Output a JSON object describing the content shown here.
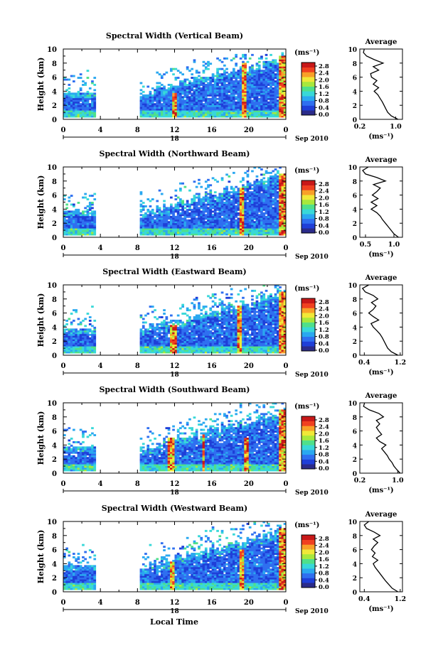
{
  "figure": {
    "day_label": "18",
    "date_label": "Sep 2010",
    "xlabel": "Local Time",
    "ylabel": "Height (km)",
    "unit_label": "(ms⁻¹)",
    "profile_title": "Average",
    "profile_xlabel": "(ms⁻¹)"
  },
  "chart_data": [
    {
      "type": "heatmap",
      "title": "Spectral Width (Vertical Beam)",
      "x_ticks": [
        "0",
        "4",
        "8",
        "12",
        "16",
        "20",
        "0"
      ],
      "x_range": [
        0,
        24
      ],
      "y_ticks": [
        "0",
        "2",
        "4",
        "6",
        "8",
        "10"
      ],
      "ylim": [
        0,
        10
      ],
      "colorbar_ticks": [
        "0.0",
        "0.4",
        "0.8",
        "1.2",
        "1.6",
        "2.0",
        "2.4",
        "2.8"
      ],
      "colorbar_range": [
        0,
        2.8
      ],
      "gaps": [
        [
          3.3,
          8.2
        ]
      ],
      "features": [
        {
          "x": 11.8,
          "width": 0.6,
          "top": 3.8
        },
        {
          "x": 19.3,
          "width": 0.6,
          "top": 8
        },
        {
          "x": 23.6,
          "width": 0.8,
          "top": 9
        }
      ],
      "profile": {
        "title": "Average",
        "x_ticks": [
          "0.2",
          "1.0"
        ],
        "xlim": [
          0.2,
          1.15
        ],
        "height": [
          0,
          0.5,
          1,
          1.5,
          2,
          2.5,
          3,
          3.5,
          4,
          4.5,
          5,
          5.5,
          6,
          6.5,
          7,
          7.5,
          8,
          8.5,
          9,
          9.5,
          10
        ],
        "values": [
          1.05,
          0.9,
          0.82,
          0.78,
          0.74,
          0.7,
          0.65,
          0.6,
          0.52,
          0.62,
          0.5,
          0.58,
          0.46,
          0.44,
          0.62,
          0.5,
          0.72,
          0.52,
          0.35,
          0.28,
          0.3
        ]
      }
    },
    {
      "type": "heatmap",
      "title": "Spectral Width (Northward Beam)",
      "x_ticks": [
        "0",
        "4",
        "8",
        "12",
        "16",
        "20",
        "0"
      ],
      "x_range": [
        0,
        24
      ],
      "y_ticks": [
        "0",
        "2",
        "4",
        "6",
        "8",
        "10"
      ],
      "ylim": [
        0,
        10
      ],
      "colorbar_ticks": [
        "0.0",
        "0.4",
        "0.8",
        "1.2",
        "1.6",
        "2.0",
        "2.4",
        "2.8"
      ],
      "colorbar_range": [
        0,
        2.8
      ],
      "gaps": [
        [
          3.3,
          8.2
        ]
      ],
      "features": [
        {
          "x": 19.2,
          "width": 0.6,
          "top": 7
        },
        {
          "x": 23.6,
          "width": 0.8,
          "top": 9
        }
      ],
      "profile": {
        "title": "Average",
        "x_ticks": [
          "0.5",
          "1.0"
        ],
        "xlim": [
          0.4,
          1.15
        ],
        "height": [
          0,
          0.5,
          1,
          1.5,
          2,
          2.5,
          3,
          3.5,
          4,
          4.5,
          5,
          5.5,
          6,
          6.5,
          7,
          7.5,
          8,
          8.5,
          9,
          9.5,
          10
        ],
        "values": [
          1.08,
          1.0,
          0.95,
          0.9,
          0.85,
          0.8,
          0.76,
          0.7,
          0.6,
          0.7,
          0.6,
          0.72,
          0.62,
          0.7,
          0.76,
          0.64,
          0.85,
          0.7,
          0.5,
          0.45,
          0.55
        ]
      }
    },
    {
      "type": "heatmap",
      "title": "Spectral Width (Eastward Beam)",
      "x_ticks": [
        "0",
        "4",
        "8",
        "12",
        "16",
        "20",
        "0"
      ],
      "x_range": [
        0,
        24
      ],
      "y_ticks": [
        "0",
        "2",
        "4",
        "6",
        "8",
        "10"
      ],
      "ylim": [
        0,
        10
      ],
      "colorbar_ticks": [
        "0.0",
        "0.4",
        "0.8",
        "1.2",
        "1.6",
        "2.0",
        "2.4",
        "2.8"
      ],
      "colorbar_range": [
        0,
        2.8
      ],
      "gaps": [
        [
          3.3,
          8.2
        ]
      ],
      "features": [
        {
          "x": 11.7,
          "width": 0.7,
          "top": 4.2
        },
        {
          "x": 18.8,
          "width": 0.6,
          "top": 7
        },
        {
          "x": 23.6,
          "width": 0.8,
          "top": 9
        }
      ],
      "profile": {
        "title": "Average",
        "x_ticks": [
          "0.4",
          "1.2"
        ],
        "xlim": [
          0.3,
          1.25
        ],
        "height": [
          0,
          0.5,
          1,
          1.5,
          2,
          2.5,
          3,
          3.5,
          4,
          4.5,
          5,
          5.5,
          6,
          6.5,
          7,
          7.5,
          8,
          8.5,
          9,
          9.5,
          10
        ],
        "values": [
          1.15,
          1.0,
          0.92,
          0.88,
          0.84,
          0.8,
          0.75,
          0.68,
          0.6,
          0.55,
          0.72,
          0.6,
          0.5,
          0.6,
          0.66,
          0.56,
          0.7,
          0.6,
          0.42,
          0.36,
          0.5
        ]
      }
    },
    {
      "type": "heatmap",
      "title": "Spectral Width (Southward Beam)",
      "x_ticks": [
        "0",
        "4",
        "8",
        "12",
        "16",
        "20",
        "0"
      ],
      "x_range": [
        0,
        24
      ],
      "y_ticks": [
        "0",
        "2",
        "4",
        "6",
        "8",
        "10"
      ],
      "ylim": [
        0,
        10
      ],
      "colorbar_ticks": [
        "0.0",
        "0.4",
        "0.8",
        "1.2",
        "1.6",
        "2.0",
        "2.4",
        "2.8"
      ],
      "colorbar_range": [
        0,
        2.8
      ],
      "gaps": [
        [
          3.3,
          8.2
        ]
      ],
      "features": [
        {
          "x": 11.6,
          "width": 0.8,
          "top": 5
        },
        {
          "x": 15.0,
          "width": 0.5,
          "top": 5.5
        },
        {
          "x": 19.6,
          "width": 0.5,
          "top": 5
        },
        {
          "x": 23.6,
          "width": 0.8,
          "top": 9
        }
      ],
      "profile": {
        "title": "Average",
        "x_ticks": [
          "0.2",
          "1.0"
        ],
        "xlim": [
          0.2,
          1.1
        ],
        "height": [
          0,
          0.5,
          1,
          1.5,
          2,
          2.5,
          3,
          3.5,
          4,
          4.5,
          5,
          5.5,
          6,
          6.5,
          7,
          7.5,
          8,
          8.5,
          9,
          9.5,
          10
        ],
        "values": [
          1.05,
          0.98,
          0.92,
          0.88,
          0.82,
          0.78,
          0.72,
          0.66,
          0.75,
          0.62,
          0.55,
          0.66,
          0.6,
          0.55,
          0.62,
          0.55,
          0.7,
          0.6,
          0.4,
          0.28,
          0.3
        ]
      }
    },
    {
      "type": "heatmap",
      "title": "Spectral Width (Westward Beam)",
      "x_ticks": [
        "0",
        "4",
        "8",
        "12",
        "16",
        "20",
        "0"
      ],
      "x_range": [
        0,
        24
      ],
      "y_ticks": [
        "0",
        "2",
        "4",
        "6",
        "8",
        "10"
      ],
      "ylim": [
        0,
        10
      ],
      "colorbar_ticks": [
        "0.0",
        "0.4",
        "0.8",
        "1.2",
        "1.6",
        "2.0",
        "2.4",
        "2.8"
      ],
      "colorbar_range": [
        0,
        2.8
      ],
      "gaps": [
        [
          3.3,
          8.2
        ]
      ],
      "features": [
        {
          "x": 11.6,
          "width": 0.6,
          "top": 4.2
        },
        {
          "x": 19.2,
          "width": 0.6,
          "top": 6
        },
        {
          "x": 23.6,
          "width": 0.8,
          "top": 9
        }
      ],
      "profile": {
        "title": "Average",
        "x_ticks": [
          "0.4",
          "1.2"
        ],
        "xlim": [
          0.3,
          1.25
        ],
        "height": [
          0,
          0.5,
          1,
          1.5,
          2,
          2.5,
          3,
          3.5,
          4,
          4.5,
          5,
          5.5,
          6,
          6.5,
          7,
          7.5,
          8,
          8.5,
          9,
          9.5,
          10
        ],
        "values": [
          1.15,
          1.02,
          0.95,
          0.88,
          0.82,
          0.76,
          0.7,
          0.64,
          0.6,
          0.7,
          0.58,
          0.64,
          0.56,
          0.62,
          0.7,
          0.6,
          0.75,
          0.62,
          0.45,
          0.4,
          0.5
        ]
      }
    }
  ]
}
